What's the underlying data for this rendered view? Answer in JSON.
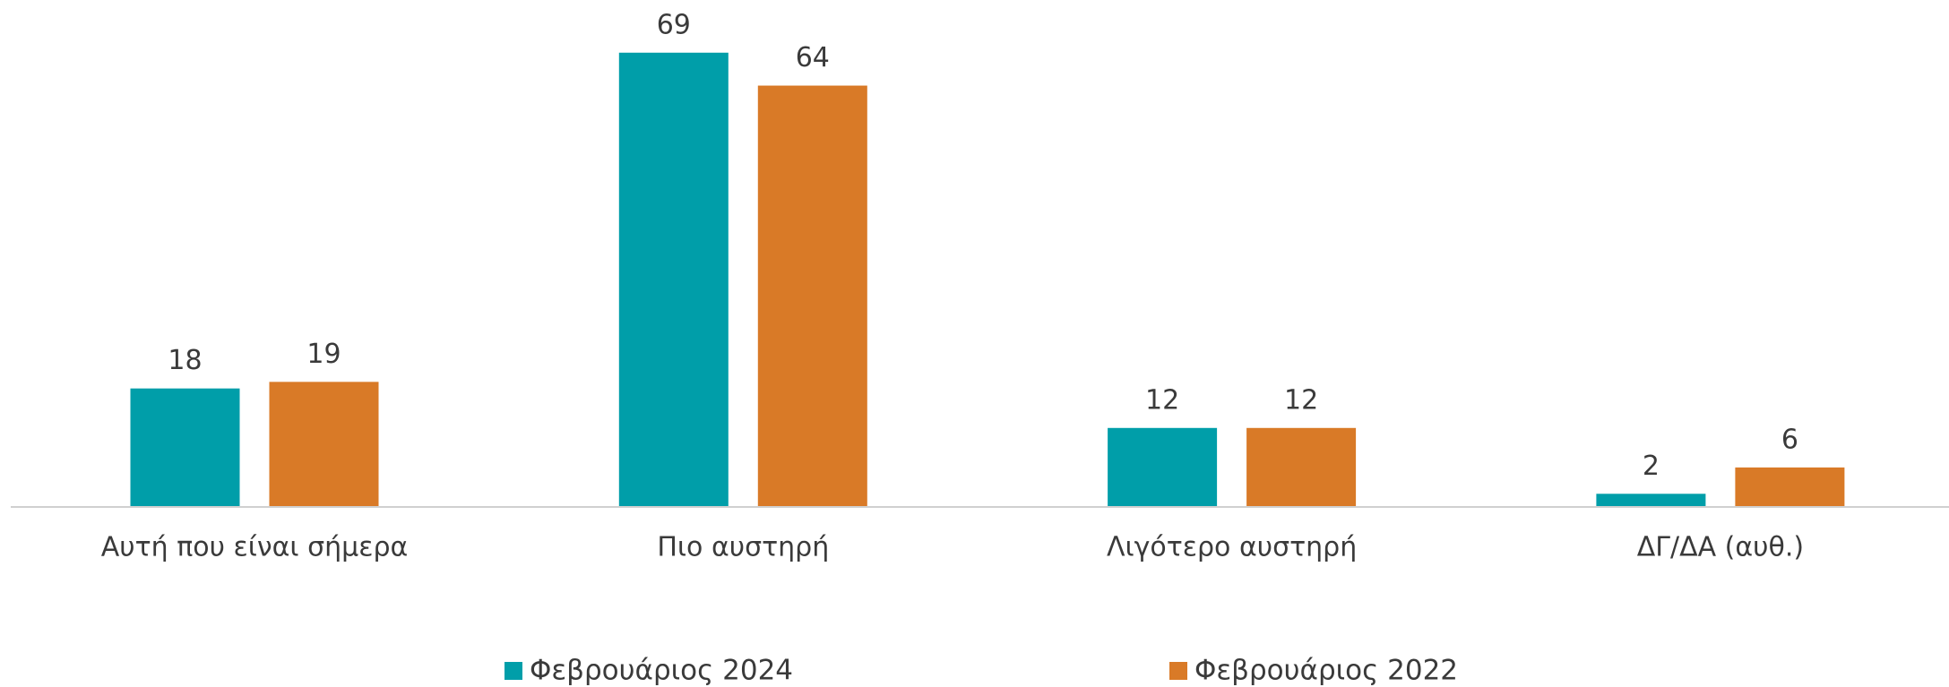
{
  "chart_data": {
    "type": "bar",
    "categories": [
      "Αυτή που είναι σήμερα",
      "Πιο αυστηρή",
      "Λιγότερο αυστηρή",
      "ΔΓ/ΔΑ (αυθ.)"
    ],
    "series": [
      {
        "name": "Φεβρουάριος 2024",
        "color": "#009ea9",
        "values": [
          18,
          69,
          12,
          2
        ]
      },
      {
        "name": "Φεβρουάριος 2022",
        "color": "#d97a27",
        "values": [
          19,
          64,
          12,
          6
        ]
      }
    ],
    "ylim": [
      0,
      77
    ],
    "grid": false,
    "legend": "bottom"
  }
}
